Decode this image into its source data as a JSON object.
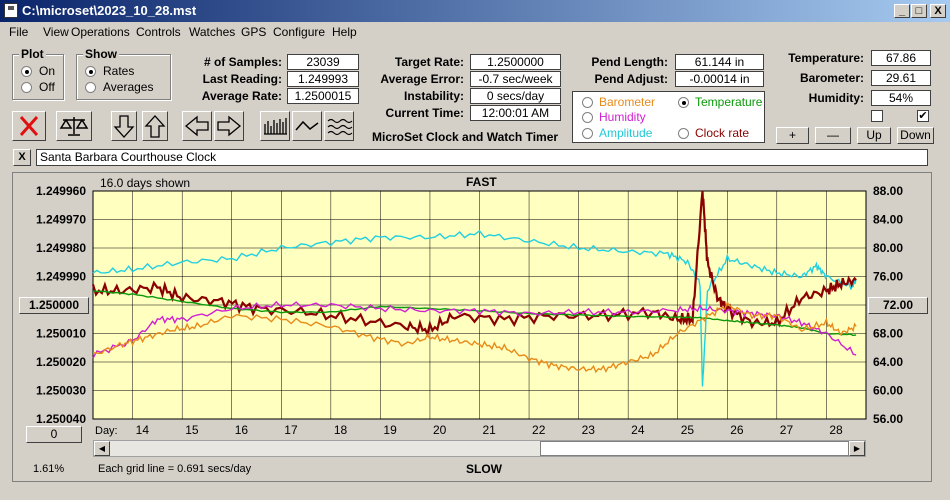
{
  "window": {
    "title": "C:\\microset\\2023_10_28.mst",
    "min": "_",
    "max": "□",
    "close": "X"
  },
  "menu": [
    "File",
    "View",
    "Operations",
    "Controls",
    "Watches",
    "GPS",
    "Configure",
    "Help"
  ],
  "plot_group": {
    "label": "Plot",
    "on": "On",
    "off": "Off",
    "selected": "On"
  },
  "show_group": {
    "label": "Show",
    "rates": "Rates",
    "averages": "Averages",
    "selected": "Rates"
  },
  "stats": {
    "samples_label": "# of Samples:",
    "samples": "23039",
    "last_label": "Last Reading:",
    "last": "1.249993",
    "avg_label": "Average Rate:",
    "avg": "1.2500015"
  },
  "target": {
    "target_label": "Target Rate:",
    "target": "1.2500000",
    "err_label": "Average Error:",
    "err": "-0.7 sec/week",
    "inst_label": "Instability:",
    "inst": "0 secs/day",
    "time_label": "Current Time:",
    "time": "12:00:01 AM"
  },
  "subtitle": "MicroSet Clock and Watch Timer",
  "pend": {
    "len_label": "Pend Length:",
    "len": "61.144 in",
    "adj_label": "Pend Adjust:",
    "adj": "-0.00014 in"
  },
  "overlay": {
    "barometer": "Barometer",
    "temperature": "Temperature",
    "humidity": "Humidity",
    "amplitude": "Amplitude",
    "clock_rate": "Clock rate",
    "selected": "Temperature",
    "colors": {
      "barometer": "#e88a1a",
      "temperature": "#0a9a0a",
      "humidity": "#d020d0",
      "amplitude": "#20d0e0",
      "clock_rate": "#8b0000"
    }
  },
  "env": {
    "temp_label": "Temperature:",
    "temp": "67.86",
    "baro_label": "Barometer:",
    "baro": "29.61",
    "hum_label": "Humidity:",
    "hum": "54%"
  },
  "scale_buttons": {
    "plus": "+",
    "minus": "—",
    "up": "Up",
    "down": "Down"
  },
  "watch_name": "Santa Barbara Courthouse Clock",
  "close_x": "X",
  "chart_data": {
    "type": "line",
    "days_shown": "16.0 days shown",
    "top_label": "FAST",
    "bottom_label": "SLOW",
    "grid_note": "Each grid line = 0.691 secs/day",
    "percent": "1.61%",
    "day_label": "Day:",
    "x_ticks": [
      14,
      15,
      16,
      17,
      18,
      19,
      20,
      21,
      22,
      23,
      24,
      25,
      26,
      27,
      28
    ],
    "xlim": [
      13.2,
      28.8
    ],
    "left_ticks": [
      "1.249960",
      "1.249970",
      "1.249980",
      "1.249990",
      "1.250000",
      "1.250010",
      "1.250020",
      "1.250030",
      "1.250040"
    ],
    "left_lim": [
      1.24996,
      1.25004
    ],
    "right_ticks": [
      "88.00",
      "84.00",
      "80.00",
      "76.00",
      "72.00",
      "68.00",
      "64.00",
      "60.00",
      "56.00"
    ],
    "right_lim": [
      56,
      88
    ],
    "center_value_button": "1.250000",
    "right_value_button": "72.00",
    "left_bottom_button": "0",
    "series": [
      {
        "name": "Amplitude",
        "color": "#20d0e0",
        "x": [
          13.2,
          14,
          15,
          16,
          17,
          18,
          19,
          20,
          21,
          22,
          23,
          24,
          24.8,
          25.2,
          25.45,
          25.5,
          25.6,
          26,
          26.5,
          27,
          27.5,
          27.8,
          28,
          28.5,
          28.6
        ],
        "y": [
          76.5,
          77,
          78,
          78.5,
          80,
          80.8,
          81.5,
          81.5,
          82,
          81,
          80,
          79.5,
          79.2,
          78,
          75,
          60.5,
          74,
          78.5,
          77.5,
          76.5,
          76,
          77.5,
          76,
          74.5,
          75.5
        ]
      },
      {
        "name": "Clock rate",
        "color": "#8b0000",
        "x": [
          13.2,
          13.8,
          14.5,
          15,
          15.8,
          16.5,
          17.5,
          18.5,
          19.5,
          20,
          20.5,
          21.5,
          22.5,
          23.5,
          24.5,
          25,
          25.3,
          25.5,
          25.6,
          25.8,
          26,
          26.5,
          27,
          27.5,
          28,
          28.3,
          28.6
        ],
        "y": [
          74,
          74,
          74.5,
          73,
          72.5,
          71.5,
          71,
          70,
          69,
          68.5,
          70.5,
          70,
          70.5,
          70.5,
          71,
          70,
          70,
          88,
          78,
          73,
          71.5,
          69.5,
          69.5,
          73,
          74,
          75,
          75.5
        ]
      },
      {
        "name": "Temperature",
        "color": "#0a9a0a",
        "x": [
          13.2,
          14,
          15,
          16,
          17,
          18,
          19,
          20,
          21,
          22,
          23,
          24,
          25,
          25.5,
          26,
          26.5,
          27,
          27.5,
          28,
          28.6
        ],
        "y": [
          74,
          73.5,
          72.5,
          71.5,
          71,
          71,
          71.8,
          71.5,
          71.2,
          70.8,
          70.6,
          70.4,
          70.3,
          70.2,
          69.8,
          69.5,
          69.2,
          68.8,
          68,
          67.8
        ]
      },
      {
        "name": "Humidity",
        "color": "#d020d0",
        "x": [
          13.2,
          14,
          14.5,
          15,
          16,
          17,
          18,
          19,
          20,
          21,
          22,
          23,
          24,
          25,
          25.5,
          26,
          26.5,
          27,
          27.5,
          28,
          28.6
        ],
        "y": [
          65,
          67,
          70,
          70,
          71.5,
          72,
          72,
          71.5,
          71.2,
          71.2,
          70.8,
          71,
          71,
          71.3,
          71.5,
          71.2,
          70.8,
          70.5,
          69.5,
          68,
          65
        ]
      },
      {
        "name": "Barometer",
        "color": "#e88a1a",
        "x": [
          13.2,
          13.8,
          14.3,
          14.8,
          15.3,
          16,
          17,
          18,
          18.8,
          19.5,
          20,
          20.5,
          21,
          21.5,
          22,
          22.5,
          23,
          23.5,
          24,
          24.5,
          25,
          25.5,
          26,
          26.5,
          27,
          27.5,
          28,
          28.3,
          28.6
        ],
        "y": [
          65,
          66.5,
          67.5,
          68.5,
          69,
          70.5,
          70,
          69,
          67.5,
          66.5,
          67.5,
          67,
          66.5,
          66,
          64.5,
          63.5,
          63,
          63,
          64,
          65,
          68,
          70,
          72,
          70.5,
          70.5,
          68.5,
          69.5,
          68,
          69
        ]
      }
    ]
  }
}
